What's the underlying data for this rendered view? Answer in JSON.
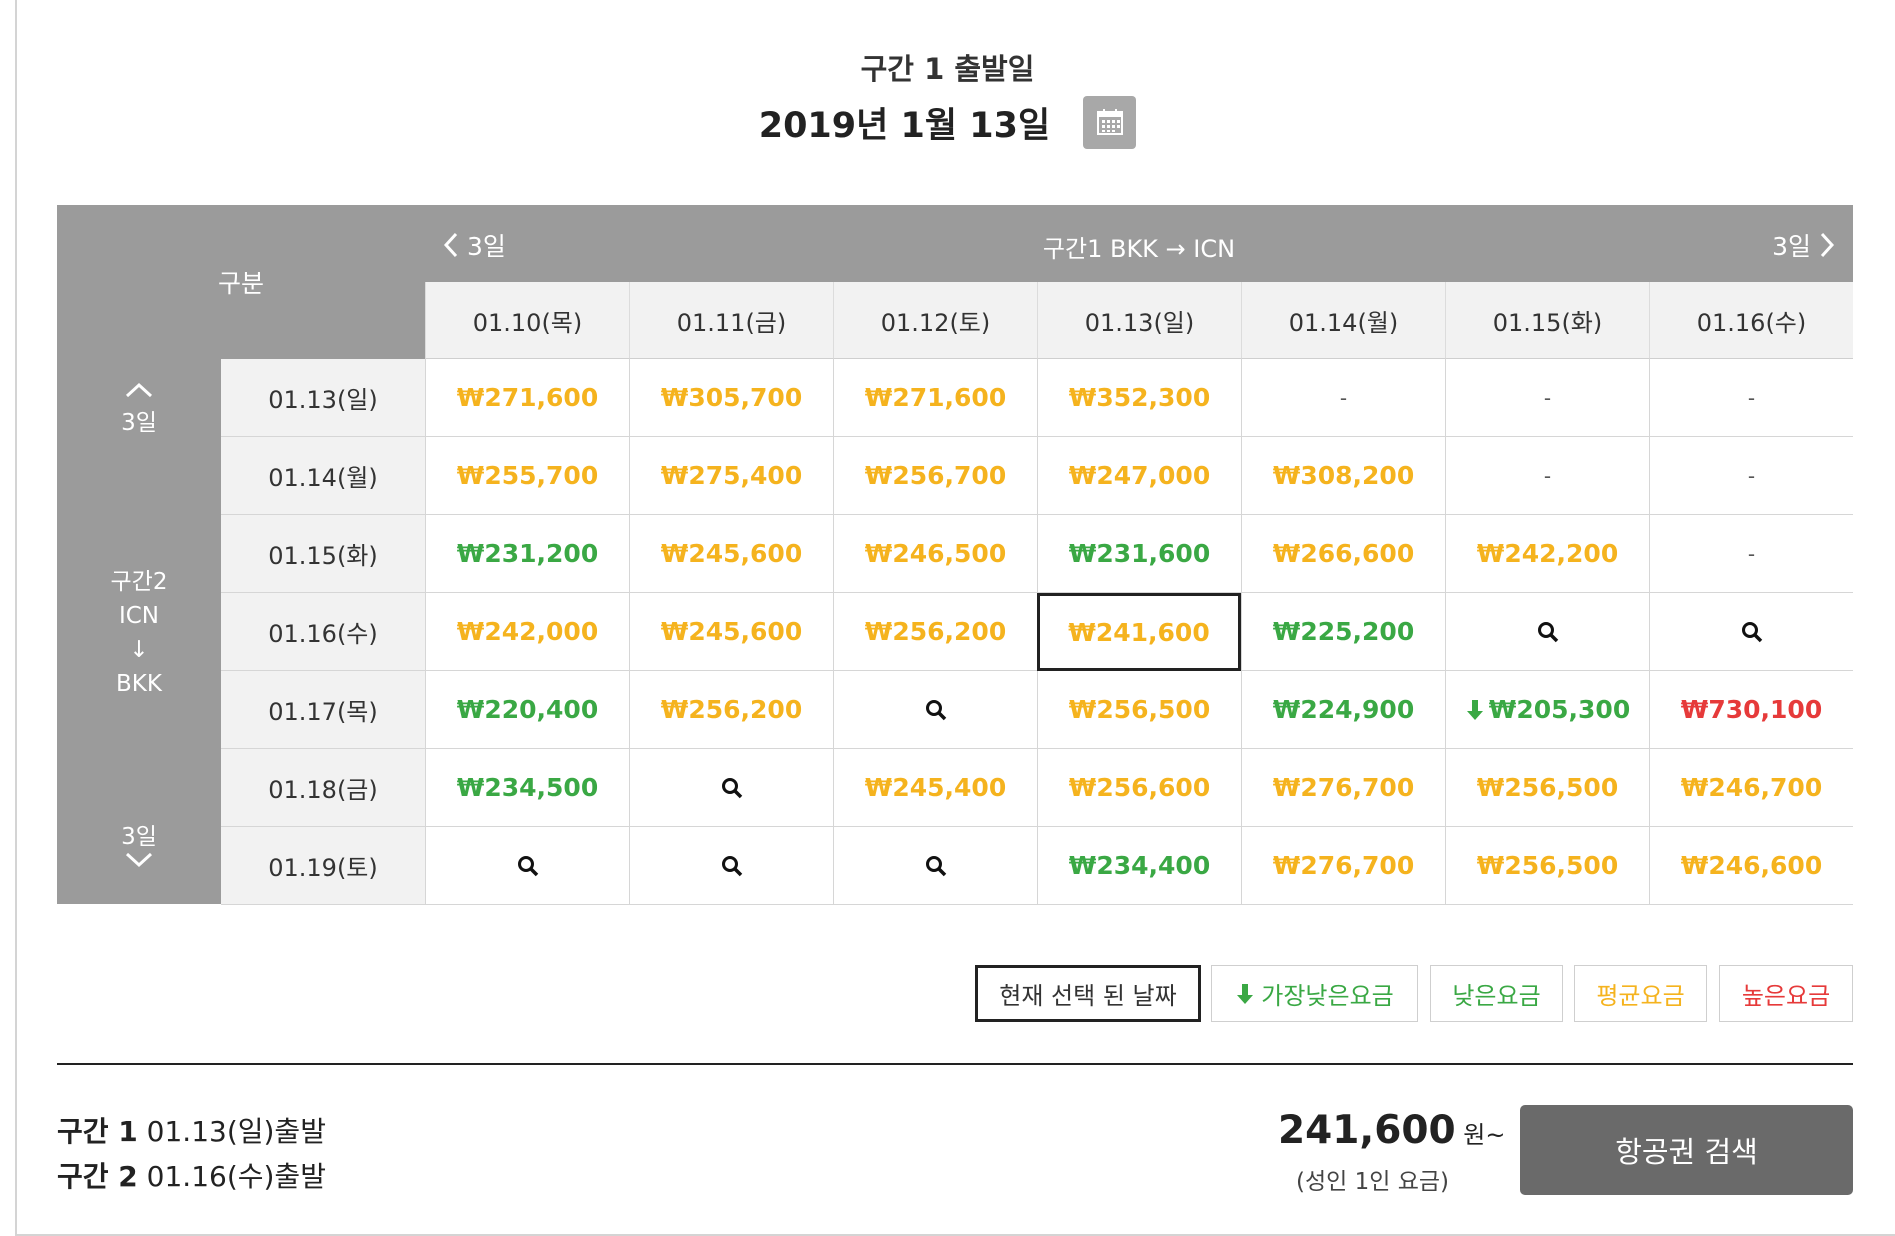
{
  "header": {
    "segment_label": "구간 1 출발일",
    "date": "2019년 1월 13일",
    "calendar_icon": "calendar-icon"
  },
  "grid": {
    "corner_label": "구분",
    "route_title": "구간1 BKK → ICN",
    "prev_label": "3일",
    "next_label": "3일",
    "columns": [
      "01.10(목)",
      "01.11(금)",
      "01.12(토)",
      "01.13(일)",
      "01.14(월)",
      "01.15(화)",
      "01.16(수)"
    ],
    "side": {
      "up_label": "3일",
      "down_label": "3일",
      "route_line1": "구간2",
      "route_line2": "ICN",
      "route_arrow": "↓",
      "route_line3": "BKK"
    },
    "rows": [
      {
        "label": "01.13(일)",
        "cells": [
          {
            "v": "₩271,600",
            "c": "orange"
          },
          {
            "v": "₩305,700",
            "c": "orange"
          },
          {
            "v": "₩271,600",
            "c": "orange"
          },
          {
            "v": "₩352,300",
            "c": "orange"
          },
          {
            "v": "-",
            "c": "dash"
          },
          {
            "v": "-",
            "c": "dash"
          },
          {
            "v": "-",
            "c": "dash"
          }
        ]
      },
      {
        "label": "01.14(월)",
        "cells": [
          {
            "v": "₩255,700",
            "c": "orange"
          },
          {
            "v": "₩275,400",
            "c": "orange"
          },
          {
            "v": "₩256,700",
            "c": "orange"
          },
          {
            "v": "₩247,000",
            "c": "orange"
          },
          {
            "v": "₩308,200",
            "c": "orange"
          },
          {
            "v": "-",
            "c": "dash"
          },
          {
            "v": "-",
            "c": "dash"
          }
        ]
      },
      {
        "label": "01.15(화)",
        "cells": [
          {
            "v": "₩231,200",
            "c": "green"
          },
          {
            "v": "₩245,600",
            "c": "orange"
          },
          {
            "v": "₩246,500",
            "c": "orange"
          },
          {
            "v": "₩231,600",
            "c": "green"
          },
          {
            "v": "₩266,600",
            "c": "orange"
          },
          {
            "v": "₩242,200",
            "c": "orange"
          },
          {
            "v": "-",
            "c": "dash"
          }
        ]
      },
      {
        "label": "01.16(수)",
        "cells": [
          {
            "v": "₩242,000",
            "c": "orange"
          },
          {
            "v": "₩245,600",
            "c": "orange"
          },
          {
            "v": "₩256,200",
            "c": "orange"
          },
          {
            "v": "₩241,600",
            "c": "orange",
            "selected": true
          },
          {
            "v": "₩225,200",
            "c": "green"
          },
          {
            "v": "",
            "c": "search"
          },
          {
            "v": "",
            "c": "search"
          }
        ]
      },
      {
        "label": "01.17(목)",
        "cells": [
          {
            "v": "₩220,400",
            "c": "green"
          },
          {
            "v": "₩256,200",
            "c": "orange"
          },
          {
            "v": "",
            "c": "search"
          },
          {
            "v": "₩256,500",
            "c": "orange"
          },
          {
            "v": "₩224,900",
            "c": "green"
          },
          {
            "v": "₩205,300",
            "c": "lowest"
          },
          {
            "v": "₩730,100",
            "c": "red"
          }
        ]
      },
      {
        "label": "01.18(금)",
        "cells": [
          {
            "v": "₩234,500",
            "c": "green"
          },
          {
            "v": "",
            "c": "search"
          },
          {
            "v": "₩245,400",
            "c": "orange"
          },
          {
            "v": "₩256,600",
            "c": "orange"
          },
          {
            "v": "₩276,700",
            "c": "orange"
          },
          {
            "v": "₩256,500",
            "c": "orange"
          },
          {
            "v": "₩246,700",
            "c": "orange"
          }
        ]
      },
      {
        "label": "01.19(토)",
        "cells": [
          {
            "v": "",
            "c": "search"
          },
          {
            "v": "",
            "c": "search"
          },
          {
            "v": "",
            "c": "search"
          },
          {
            "v": "₩234,400",
            "c": "green"
          },
          {
            "v": "₩276,700",
            "c": "orange"
          },
          {
            "v": "₩256,500",
            "c": "orange"
          },
          {
            "v": "₩246,600",
            "c": "orange"
          }
        ]
      }
    ]
  },
  "legend": {
    "selected": "현재 선택 된 날짜",
    "lowest": "가장낮은요금",
    "low": "낮은요금",
    "average": "평균요금",
    "high": "높은요금"
  },
  "summary": {
    "seg1_label": "구간 1",
    "seg1_value": " 01.13(일)출발",
    "seg2_label": "구간 2",
    "seg2_value": " 01.16(수)출발",
    "price": "241,600",
    "price_unit": " 원~",
    "price_note": "(성인 1인 요금)",
    "search_button": "항공권 검색"
  },
  "colors": {
    "orange": "#f5b31e",
    "green": "#3aa844",
    "red": "#e63a3a",
    "header_gray": "#9b9b9b"
  }
}
